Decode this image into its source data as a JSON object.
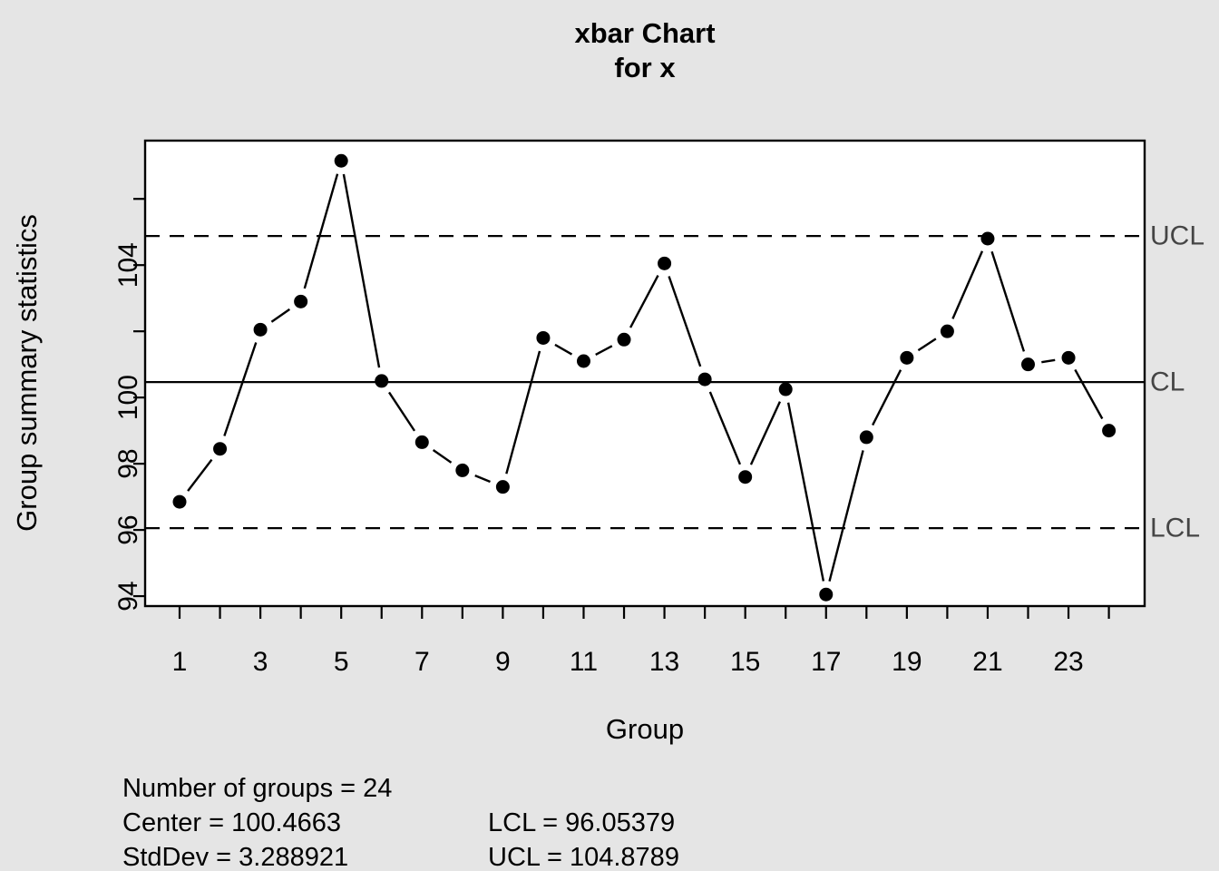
{
  "title": {
    "line1": "xbar Chart",
    "line2": "for x"
  },
  "axes": {
    "x_label": "Group",
    "y_label": "Group summary statistics"
  },
  "stats": {
    "n_groups_label": "Number of groups = 24",
    "center_label": "Center = 100.4663",
    "stddev_label": "StdDev = 3.288921",
    "lcl_label": "LCL = 96.05379",
    "ucl_label": "UCL = 104.8789"
  },
  "colors": {
    "background": "#e5e5e5",
    "plot_background": "#ffffff",
    "series": "#000000",
    "limit_label_text": "#454545"
  },
  "chart_data": {
    "type": "line",
    "title": "xbar Chart for x",
    "xlabel": "Group",
    "ylabel": "Group summary statistics",
    "x": [
      1,
      2,
      3,
      4,
      5,
      6,
      7,
      8,
      9,
      10,
      11,
      12,
      13,
      14,
      15,
      16,
      17,
      18,
      19,
      20,
      21,
      22,
      23,
      24
    ],
    "values": [
      96.85,
      98.45,
      102.05,
      102.9,
      107.15,
      100.5,
      98.65,
      97.8,
      97.3,
      101.8,
      101.1,
      101.75,
      104.05,
      100.55,
      97.6,
      100.25,
      94.05,
      98.8,
      101.2,
      102.0,
      104.8,
      101.0,
      101.2,
      99.0
    ],
    "center": 100.4663,
    "ucl": 104.8789,
    "lcl": 96.05379,
    "stddev": 3.288921,
    "n_groups": 24,
    "ylim": [
      93.7,
      107.76
    ],
    "y_ticks": [
      94,
      96,
      98,
      100,
      102,
      104,
      106
    ],
    "y_tick_labels": [
      94,
      96,
      98,
      100,
      104
    ],
    "x_tick_labels": [
      1,
      3,
      5,
      7,
      9,
      11,
      13,
      15,
      17,
      19,
      21,
      23
    ],
    "line_labels": {
      "ucl": "UCL",
      "cl": "CL",
      "lcl": "LCL"
    },
    "grid": false,
    "legend_position": "none",
    "marker": "filled-circle"
  }
}
